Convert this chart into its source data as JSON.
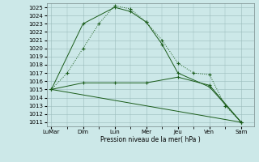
{
  "background_color": "#cce8e8",
  "grid_color": "#99bbbb",
  "line_color": "#1a5c1a",
  "ylabel_text": "Pression niveau de la mer( hPa )",
  "ylim_min": 1010.5,
  "ylim_max": 1025.5,
  "yticks": [
    1011,
    1012,
    1013,
    1014,
    1015,
    1016,
    1017,
    1018,
    1019,
    1020,
    1021,
    1022,
    1023,
    1024,
    1025
  ],
  "xtick_labels": [
    "LuMar",
    "Dim",
    "Lun",
    "Mer",
    "Jeu",
    "Ven",
    "Sam"
  ],
  "x_positions": [
    0,
    2,
    4,
    6,
    8,
    10,
    12
  ],
  "xlim_min": -0.3,
  "xlim_max": 12.8,
  "series": [
    {
      "name": "line1_dotted",
      "x": [
        0,
        1,
        2,
        3,
        4,
        5,
        6,
        7,
        8,
        9,
        10,
        11,
        12
      ],
      "y": [
        1015,
        1017,
        1020,
        1023,
        1025.2,
        1024.8,
        1023.2,
        1021.0,
        1018.2,
        1017.0,
        1016.8,
        1013.0,
        1011.0
      ],
      "marker": "+",
      "linestyle": ":"
    },
    {
      "name": "line2_solid",
      "x": [
        0,
        2,
        4,
        5,
        6,
        7,
        8,
        10,
        12
      ],
      "y": [
        1015,
        1023,
        1025,
        1024.5,
        1023.2,
        1020.5,
        1017.0,
        1015.3,
        1011.0
      ],
      "marker": "+",
      "linestyle": "-"
    },
    {
      "name": "line3_flat",
      "x": [
        0,
        2,
        4,
        6,
        8,
        10,
        12
      ],
      "y": [
        1015.0,
        1015.8,
        1015.8,
        1015.8,
        1016.5,
        1015.5,
        1011.0
      ],
      "marker": "+",
      "linestyle": "-"
    },
    {
      "name": "line4_diagonal",
      "x": [
        0,
        12
      ],
      "y": [
        1015,
        1011
      ],
      "marker": null,
      "linestyle": "-"
    }
  ],
  "tick_fontsize": 5.0,
  "xlabel_fontsize": 5.5,
  "marker_size": 3.5,
  "linewidth": 0.7
}
